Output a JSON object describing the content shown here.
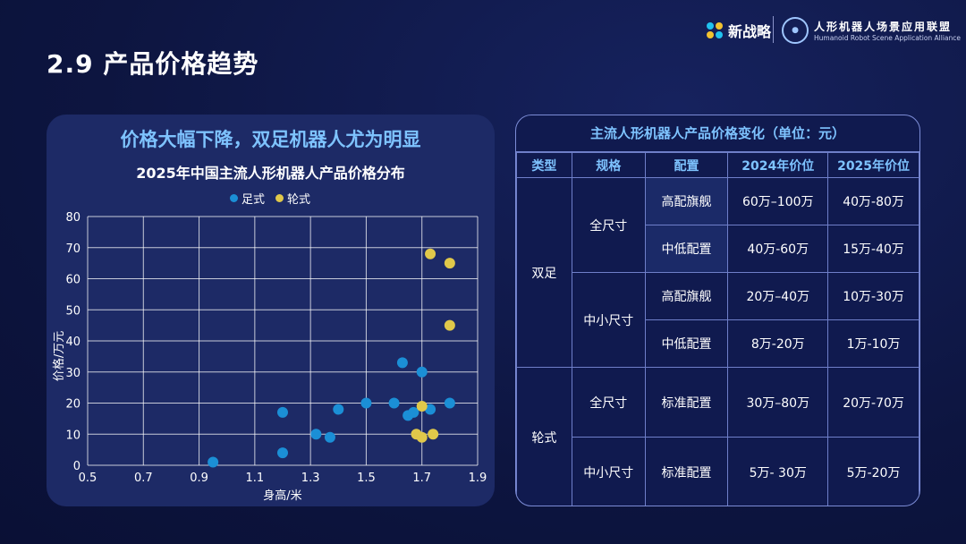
{
  "page": {
    "title": "2.9 产品价格趋势",
    "logos": {
      "brand_a": "新战略",
      "brand_b_cn": "人形机器人场景应用联盟",
      "brand_b_en": "Humanoid Robot Scene Application Alliance"
    }
  },
  "left_panel": {
    "headline": "价格大幅下降，双足机器人尤为明显"
  },
  "chart_data": {
    "type": "scatter",
    "title": "2025年中国主流人形机器人产品价格分布",
    "xlabel": "身高/米",
    "ylabel": "价格/万元",
    "xlim": [
      0.5,
      1.9
    ],
    "ylim": [
      0,
      80
    ],
    "x_ticks": [
      "0.5",
      "0.7",
      "0.9",
      "1.1",
      "1.3",
      "1.5",
      "1.7",
      "1.9"
    ],
    "y_ticks": [
      "0",
      "10",
      "20",
      "30",
      "40",
      "50",
      "60",
      "70",
      "80"
    ],
    "grid": true,
    "legend_position": "top-center",
    "series": [
      {
        "name": "足式",
        "color": "#1b8fd6",
        "points": [
          [
            0.95,
            1
          ],
          [
            1.2,
            4
          ],
          [
            1.2,
            17
          ],
          [
            1.32,
            10
          ],
          [
            1.37,
            9
          ],
          [
            1.4,
            18
          ],
          [
            1.5,
            20
          ],
          [
            1.6,
            20
          ],
          [
            1.63,
            33
          ],
          [
            1.65,
            16
          ],
          [
            1.67,
            17
          ],
          [
            1.7,
            30
          ],
          [
            1.73,
            18
          ],
          [
            1.8,
            20
          ]
        ]
      },
      {
        "name": "轮式",
        "color": "#e0c84a",
        "points": [
          [
            1.68,
            10
          ],
          [
            1.7,
            9
          ],
          [
            1.7,
            19
          ],
          [
            1.73,
            68
          ],
          [
            1.74,
            10
          ],
          [
            1.8,
            65
          ],
          [
            1.8,
            45
          ]
        ]
      }
    ]
  },
  "price_table": {
    "title": "主流人形机器人产品价格变化（单位：元）",
    "headers": [
      "类型",
      "规格",
      "配置",
      "2024年价位",
      "2025年价位"
    ],
    "types": [
      "双足",
      "轮式"
    ],
    "specs": [
      "全尺寸",
      "中小尺寸",
      "全尺寸",
      "中小尺寸"
    ],
    "rows": [
      {
        "config": "高配旗舰",
        "p2024": "60万–100万",
        "p2025": "40万-80万"
      },
      {
        "config": "中低配置",
        "p2024": "40万-60万",
        "p2025": "15万-40万"
      },
      {
        "config": "高配旗舰",
        "p2024": "20万–40万",
        "p2025": "10万-30万"
      },
      {
        "config": "中低配置",
        "p2024": "8万-20万",
        "p2025": "1万-10万"
      },
      {
        "config": "标准配置",
        "p2024": "30万–80万",
        "p2025": "20万-70万"
      },
      {
        "config": "标准配置",
        "p2024": "5万- 30万",
        "p2025": "5万-20万"
      }
    ]
  }
}
